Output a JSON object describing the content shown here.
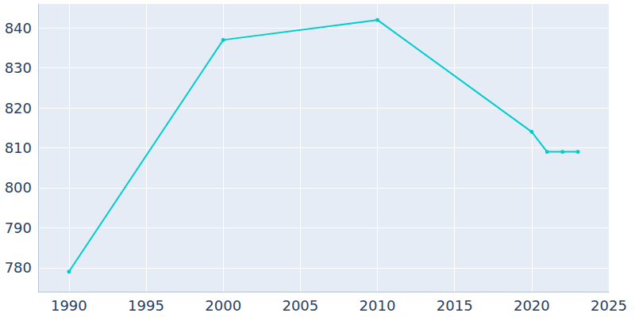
{
  "chart_data": {
    "type": "line",
    "x": [
      1990,
      2000,
      2010,
      2020,
      2021,
      2022,
      2023
    ],
    "values": [
      779,
      837,
      842,
      814,
      809,
      809,
      809
    ],
    "color": "#00cccc",
    "marker": "circle",
    "xlim": [
      1988,
      2025
    ],
    "xticks": [
      1990,
      1995,
      2000,
      2005,
      2010,
      2015,
      2020,
      2025
    ],
    "ylim": [
      774,
      846
    ],
    "yticks": [
      780,
      790,
      800,
      810,
      820,
      830,
      840
    ],
    "grid": true
  }
}
